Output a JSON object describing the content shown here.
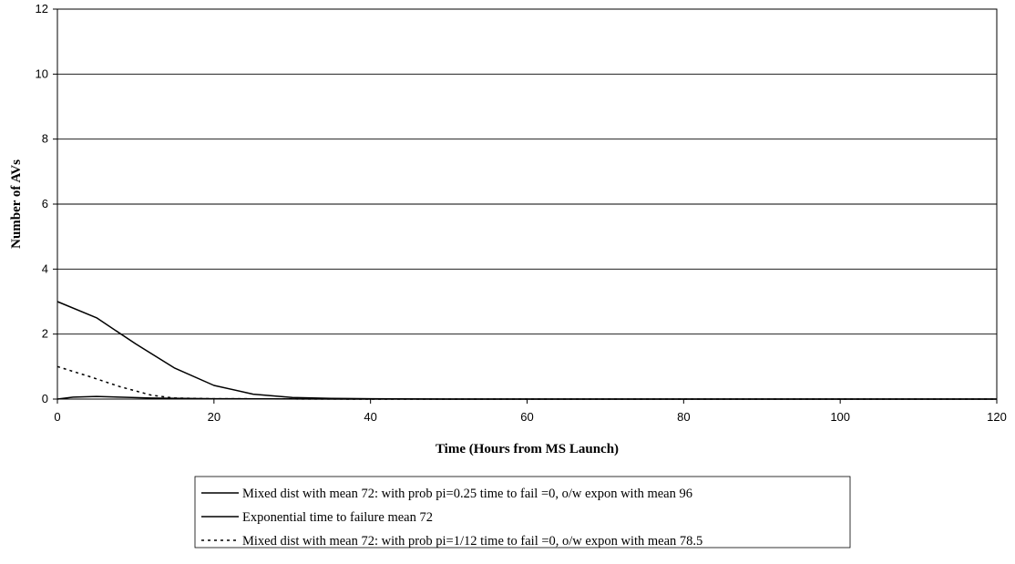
{
  "chart_data": {
    "type": "line",
    "title": "",
    "xlabel": "Time (Hours from MS Launch)",
    "ylabel": "Number of AVs",
    "xlim": [
      0,
      120
    ],
    "ylim": [
      0,
      12
    ],
    "x_ticks": [
      0,
      20,
      40,
      60,
      80,
      100,
      120
    ],
    "y_ticks": [
      0,
      2,
      4,
      6,
      8,
      10,
      12
    ],
    "grid": "horizontal",
    "legend_position": "bottom",
    "series": [
      {
        "name": "Mixed dist with mean 72: with prob pi=0.25 time to fail =0, o/w expon with mean 96",
        "style": "solid",
        "x": [
          0,
          5,
          10,
          15,
          20,
          25,
          30,
          35,
          40,
          50,
          60,
          70,
          80,
          90,
          100,
          110,
          120
        ],
        "y": [
          3.0,
          2.5,
          1.7,
          0.95,
          0.42,
          0.15,
          0.05,
          0.02,
          0.01,
          0,
          0,
          0,
          0,
          0,
          0,
          0,
          0
        ]
      },
      {
        "name": "Exponential time to failure mean 72",
        "style": "solid",
        "x": [
          0,
          2,
          5,
          8,
          12,
          20,
          40,
          60,
          80,
          100,
          120
        ],
        "y": [
          0,
          0.06,
          0.08,
          0.06,
          0.03,
          0.01,
          0,
          0,
          0,
          0,
          0
        ]
      },
      {
        "name": "Mixed dist with mean 72: with prob pi=1/12 time to fail =0, o/w expon with mean 78.5",
        "style": "dashed",
        "x": [
          0,
          4,
          8,
          12,
          15,
          20,
          40,
          60,
          80,
          100,
          120
        ],
        "y": [
          1.0,
          0.7,
          0.38,
          0.12,
          0.03,
          0.01,
          0,
          0,
          0,
          0,
          0
        ]
      }
    ]
  }
}
